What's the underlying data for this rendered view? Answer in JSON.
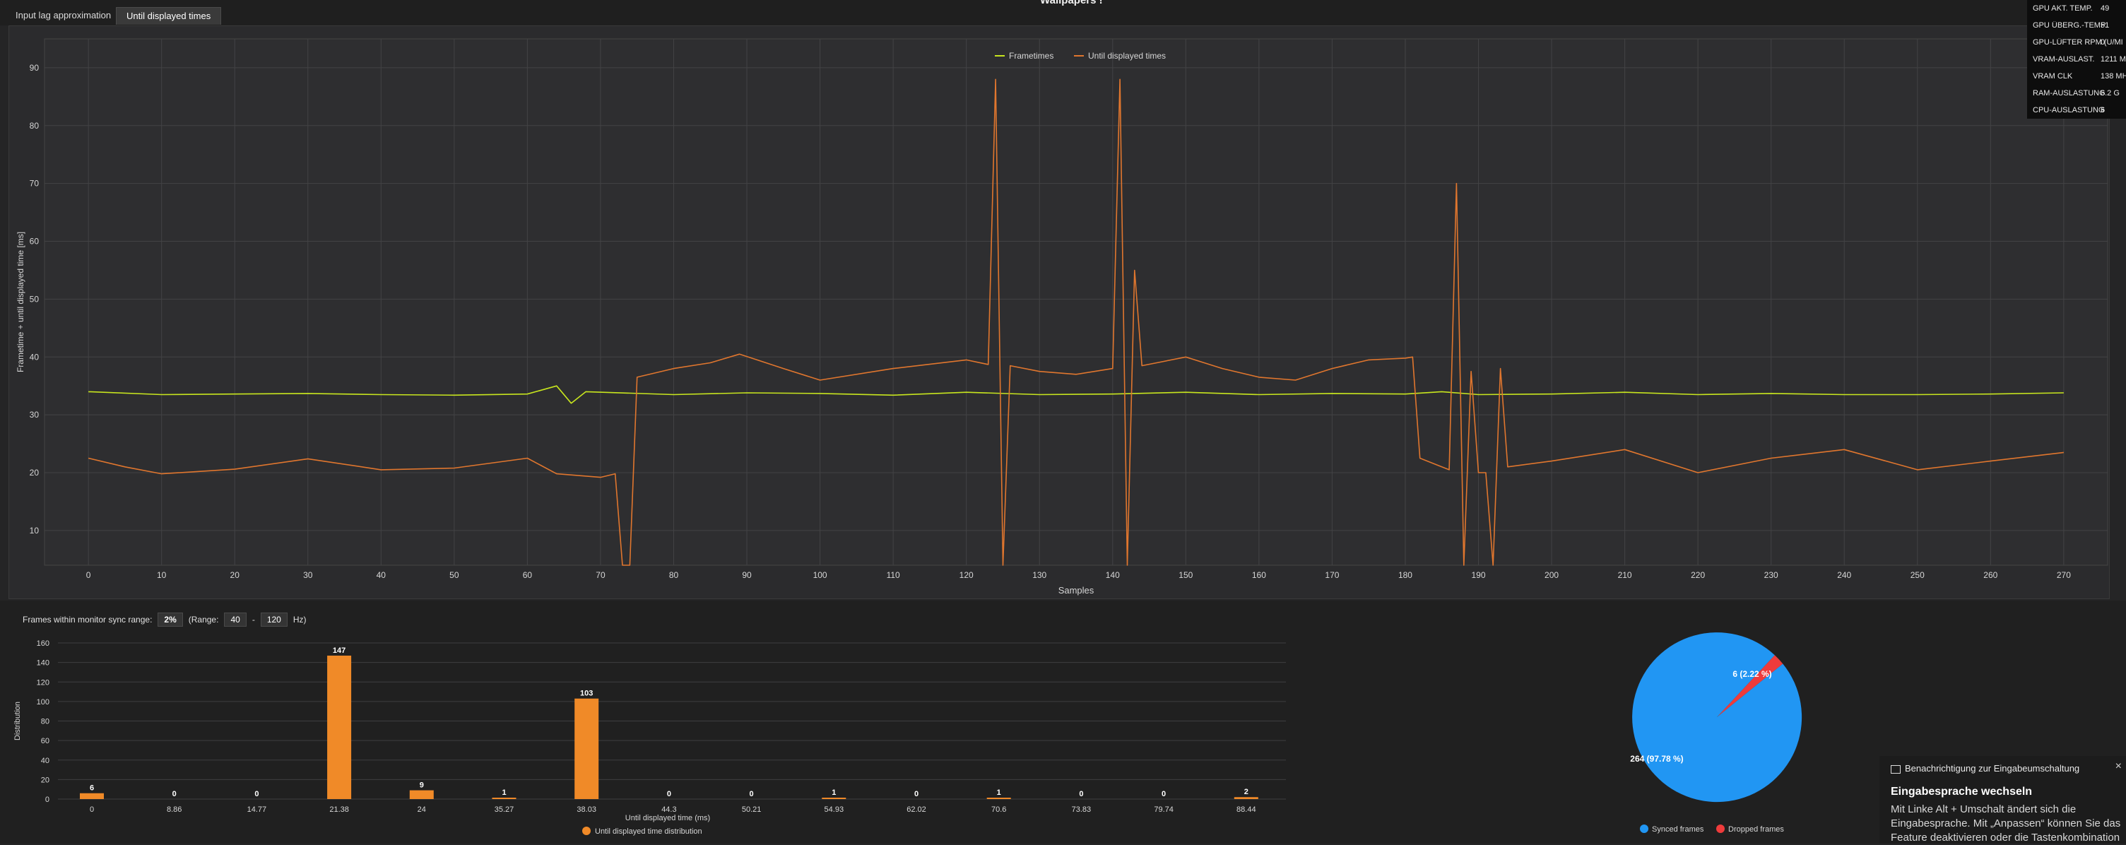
{
  "app": {
    "title": "Wallpapers !"
  },
  "tabs": [
    {
      "label": "Input lag approximation",
      "active": false
    },
    {
      "label": "Until displayed times",
      "active": true
    }
  ],
  "colors": {
    "frametimes": "#c8e61e",
    "until_displayed": "#e0762e",
    "bar": "#f08a28",
    "synced": "#2196f3",
    "dropped": "#ef3b3b"
  },
  "sync_range": {
    "label": "Frames within monitor sync range:",
    "percent": "2%",
    "range_label": "(Range:",
    "min": "40",
    "separator": "-",
    "max": "120",
    "unit": "Hz)"
  },
  "chart_data": [
    {
      "type": "line",
      "xlabel": "Samples",
      "ylabel": "Frametime + until displayed time [ms]",
      "xlim": [
        -6,
        276
      ],
      "ylim": [
        4,
        95
      ],
      "x_ticks": [
        0,
        10,
        20,
        30,
        40,
        50,
        60,
        70,
        80,
        90,
        100,
        110,
        120,
        130,
        140,
        150,
        160,
        170,
        180,
        190,
        200,
        210,
        220,
        230,
        240,
        250,
        260,
        270
      ],
      "y_ticks": [
        10,
        20,
        30,
        40,
        50,
        60,
        70,
        80,
        90
      ],
      "grid": true,
      "legend": "top-center",
      "series": [
        {
          "name": "Frametimes",
          "color": "#c8e61e",
          "points": [
            [
              0,
              34
            ],
            [
              10,
              33.5
            ],
            [
              20,
              33.6
            ],
            [
              30,
              33.7
            ],
            [
              40,
              33.5
            ],
            [
              50,
              33.4
            ],
            [
              60,
              33.6
            ],
            [
              64,
              35
            ],
            [
              66,
              32
            ],
            [
              68,
              34
            ],
            [
              80,
              33.5
            ],
            [
              90,
              33.8
            ],
            [
              100,
              33.7
            ],
            [
              110,
              33.4
            ],
            [
              120,
              33.9
            ],
            [
              130,
              33.5
            ],
            [
              140,
              33.6
            ],
            [
              150,
              33.9
            ],
            [
              160,
              33.5
            ],
            [
              170,
              33.7
            ],
            [
              180,
              33.6
            ],
            [
              185,
              34
            ],
            [
              190,
              33.5
            ],
            [
              200,
              33.6
            ],
            [
              210,
              33.9
            ],
            [
              220,
              33.5
            ],
            [
              230,
              33.7
            ],
            [
              240,
              33.5
            ],
            [
              250,
              33.5
            ],
            [
              260,
              33.6
            ],
            [
              270,
              33.8
            ]
          ]
        },
        {
          "name": "Until displayed times",
          "color": "#e0762e",
          "points": [
            [
              0,
              22.5
            ],
            [
              5,
              21
            ],
            [
              10,
              19.8
            ],
            [
              20,
              20.6
            ],
            [
              30,
              22.4
            ],
            [
              40,
              20.5
            ],
            [
              50,
              20.8
            ],
            [
              60,
              22.5
            ],
            [
              64,
              19.8
            ],
            [
              70,
              19.2
            ],
            [
              72,
              19.8
            ],
            [
              73,
              4
            ],
            [
              74,
              4
            ],
            [
              75,
              36.5
            ],
            [
              80,
              38
            ],
            [
              85,
              39
            ],
            [
              89,
              40.5
            ],
            [
              95,
              38
            ],
            [
              100,
              36
            ],
            [
              110,
              38
            ],
            [
              120,
              39.5
            ],
            [
              123,
              38.7
            ],
            [
              124,
              88
            ],
            [
              125,
              4
            ],
            [
              126,
              38.5
            ],
            [
              130,
              37.5
            ],
            [
              135,
              37
            ],
            [
              140,
              38
            ],
            [
              141,
              88
            ],
            [
              142,
              4
            ],
            [
              143,
              55
            ],
            [
              144,
              38.5
            ],
            [
              150,
              40
            ],
            [
              155,
              38
            ],
            [
              160,
              36.5
            ],
            [
              165,
              36
            ],
            [
              170,
              38
            ],
            [
              175,
              39.5
            ],
            [
              180,
              39.8
            ],
            [
              181,
              40
            ],
            [
              182,
              22.5
            ],
            [
              186,
              20.5
            ],
            [
              187,
              70
            ],
            [
              188,
              4
            ],
            [
              189,
              37.5
            ],
            [
              190,
              20
            ],
            [
              191,
              20
            ],
            [
              192,
              4
            ],
            [
              193,
              38
            ],
            [
              194,
              21
            ],
            [
              200,
              22
            ],
            [
              210,
              24
            ],
            [
              220,
              20
            ],
            [
              230,
              22.5
            ],
            [
              240,
              24
            ],
            [
              250,
              20.5
            ],
            [
              260,
              22
            ],
            [
              270,
              23.5
            ]
          ]
        }
      ]
    },
    {
      "type": "bar",
      "xlabel": "Until displayed time (ms)",
      "ylabel": "Distribution",
      "ylim": [
        0,
        160
      ],
      "y_ticks": [
        0,
        20,
        40,
        60,
        80,
        100,
        120,
        140,
        160
      ],
      "grid": true,
      "legend": "bottom-center",
      "categories": [
        "0",
        "8.86",
        "14.77",
        "21.38",
        "24",
        "35.27",
        "38.03",
        "44.3",
        "50.21",
        "54.93",
        "62.02",
        "70.6",
        "73.83",
        "79.74",
        "88.44"
      ],
      "series": [
        {
          "name": "Until displayed time distribution",
          "color": "#f08a28",
          "values": [
            6,
            0,
            0,
            147,
            9,
            1,
            103,
            0,
            0,
            1,
            0,
            1,
            0,
            0,
            2
          ]
        }
      ]
    },
    {
      "type": "pie",
      "legend": "bottom-center",
      "series": [
        {
          "name": "Synced frames",
          "value": 264,
          "label": "264 (97.78 %)",
          "color": "#2196f3"
        },
        {
          "name": "Dropped frames",
          "value": 6,
          "label": "6 (2.22 %)",
          "color": "#ef3b3b"
        }
      ]
    }
  ],
  "osd": [
    {
      "label": "GPU AKT. TEMP.",
      "value": "49"
    },
    {
      "label": "GPU ÜBERG.-TEMP.",
      "value": "51"
    },
    {
      "label": "GPU-LÜFTER RPM (U/MI",
      "value": "0"
    },
    {
      "label": "VRAM-AUSLAST.",
      "value": "1211 M"
    },
    {
      "label": "VRAM CLK",
      "value": "138 MH"
    },
    {
      "label": "RAM-AUSLASTUNG",
      "value": "6.2 G"
    },
    {
      "label": "CPU-AUSLASTUNG",
      "value": "6"
    }
  ],
  "notification": {
    "header": "Benachrichtigung zur Eingabeumschaltung",
    "close": "×",
    "title": "Eingabesprache wechseln",
    "body": "Mit Linke Alt + Umschalt ändert sich die Eingabesprache. Mit „Anpassen“ können Sie das Feature deaktivieren oder die Tastenkombination"
  }
}
